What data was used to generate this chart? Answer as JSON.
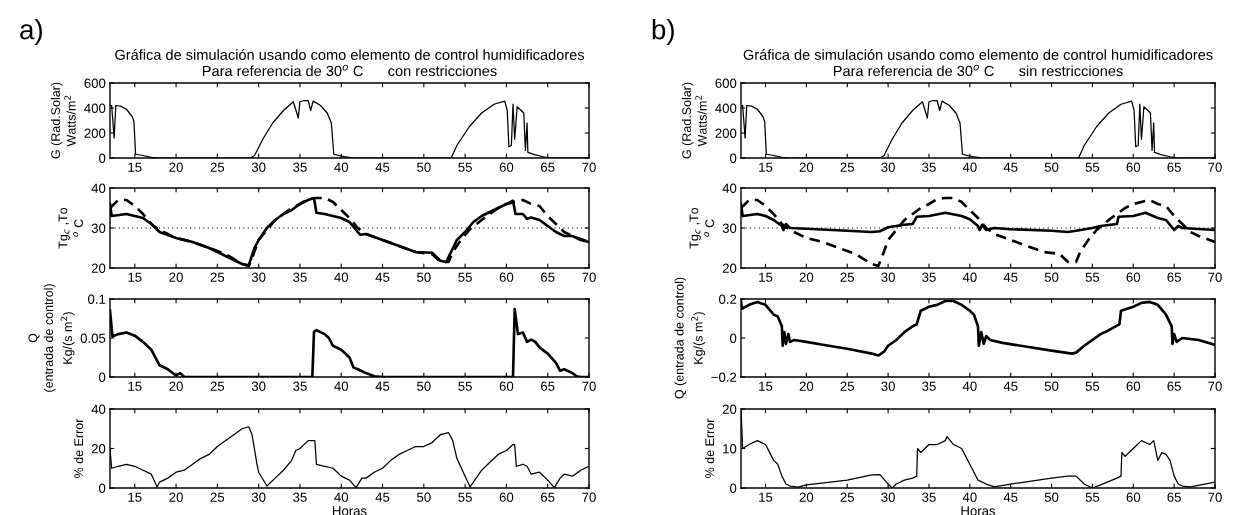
{
  "chart_data": [
    {
      "type": "line",
      "title": "Gráfica de simulación usando como elemento de control humidificadores\nPara referencia de 30$^{o}$ C      con restricciones",
      "ylabel": "G (Rad.Solar)\nWatts/m$^{2}$",
      "annotations": [
        "a)"
      ],
      "xlim": [
        12,
        70
      ],
      "xticks": [
        15,
        20,
        25,
        30,
        35,
        40,
        45,
        50,
        55,
        60,
        65,
        70
      ],
      "ylim": [
        0,
        600
      ],
      "yticks": [
        0,
        200,
        400,
        600
      ],
      "grid": false,
      "legend": false,
      "series": [
        {
          "color": "#000000",
          "x": [
            12,
            12.2,
            12.5,
            12.7,
            13.3,
            14,
            14.7,
            14.9,
            15.1,
            16,
            17,
            18,
            29,
            29.5,
            30.5,
            31.7,
            33,
            34.2,
            34.8,
            35,
            35.5,
            36,
            36.3,
            36.6,
            37.5,
            38.3,
            38.8,
            39.1,
            40,
            41.5,
            53.3,
            54,
            55.5,
            57,
            58.5,
            59.8,
            60.1,
            60.3,
            60.6,
            60.8,
            61,
            61.3,
            61.8,
            62.1,
            62.3,
            62.5,
            62.6,
            63.5,
            64.5,
            65.5,
            70
          ],
          "values": [
            420,
            420,
            160,
            420,
            415,
            390,
            330,
            290,
            30,
            20,
            5,
            0,
            0,
            20,
            150,
            280,
            380,
            450,
            320,
            450,
            460,
            460,
            380,
            455,
            420,
            360,
            280,
            30,
            15,
            0,
            0,
            100,
            250,
            360,
            430,
            455,
            380,
            90,
            100,
            430,
            150,
            410,
            380,
            360,
            60,
            280,
            45,
            25,
            10,
            0,
            0
          ]
        }
      ]
    },
    {
      "type": "line",
      "ylabel": "Tg$_{c}$ ,To\n$^{o}$ C",
      "xlim": [
        12,
        70
      ],
      "xticks": [
        15,
        20,
        25,
        30,
        35,
        40,
        45,
        50,
        55,
        60,
        65,
        70
      ],
      "ylim": [
        20,
        40
      ],
      "yticks": [
        20,
        30,
        40
      ],
      "grid": false,
      "legend": false,
      "ref_lines": [
        {
          "axis": "y",
          "value": 30,
          "line_style": "dotted",
          "color": "#000000"
        }
      ],
      "series": [
        {
          "color": "#000000",
          "line_style": "solid",
          "x": [
            12,
            12.2,
            14,
            15,
            16,
            17,
            18,
            20,
            22,
            24,
            26,
            28,
            28.8,
            29.5,
            30,
            31,
            32,
            33,
            34,
            35,
            36,
            36.7,
            37,
            38,
            39,
            40,
            41,
            42,
            42.3,
            43,
            45,
            47,
            49,
            51,
            52,
            52.7,
            53.3,
            54,
            55,
            56,
            57,
            58,
            59,
            60,
            60.8,
            61.1,
            62,
            62.5,
            63,
            64,
            65,
            66,
            67,
            68,
            69,
            70
          ],
          "values": [
            36,
            33,
            33.5,
            33,
            32.5,
            31,
            29,
            27.5,
            26.5,
            25,
            23,
            21,
            20.7,
            25,
            27,
            30,
            32,
            33.5,
            34.5,
            36,
            37,
            37.5,
            33.8,
            33.5,
            33,
            32.5,
            31.5,
            29,
            28.3,
            28.5,
            27,
            25.5,
            24,
            23.8,
            21.8,
            21.5,
            24,
            27,
            29,
            31.5,
            33,
            34,
            35,
            36,
            36.8,
            33.5,
            33.5,
            32.3,
            32.6,
            32,
            30.5,
            29,
            28,
            28,
            27,
            26.5
          ]
        },
        {
          "color": "#000000",
          "line_style": "dashed",
          "x": [
            12,
            13,
            14,
            15,
            16,
            17,
            18,
            19,
            20,
            22,
            24,
            26,
            28,
            28.8,
            29.3,
            30,
            31,
            32,
            33,
            34,
            35,
            36,
            37,
            38,
            39,
            40,
            41,
            42,
            43,
            45,
            47,
            49,
            51,
            52,
            53,
            53.5,
            54.5,
            55.5,
            57,
            58,
            59,
            60,
            61,
            62,
            63,
            64,
            65,
            66,
            67,
            68,
            70
          ],
          "values": [
            35,
            37,
            37,
            35.5,
            33.5,
            31,
            29.5,
            28.5,
            27.5,
            26.5,
            25,
            23.5,
            21,
            20.5,
            23,
            27,
            29.5,
            32,
            33.5,
            35,
            36,
            37.2,
            37.5,
            37.5,
            36.5,
            34.5,
            32.5,
            30,
            28.5,
            27,
            25.5,
            24,
            23.5,
            21.5,
            21.5,
            24,
            27,
            29.5,
            32,
            33.5,
            35,
            36,
            36.5,
            37,
            36,
            35.5,
            33,
            31,
            29,
            28,
            26.5
          ]
        }
      ]
    },
    {
      "type": "line",
      "ylabel": "Q\n(entrada de control)\nKg/(s m$^{2}$)",
      "xlim": [
        12,
        70
      ],
      "xticks": [
        15,
        20,
        25,
        30,
        35,
        40,
        45,
        50,
        55,
        60,
        65,
        70
      ],
      "ylim": [
        0,
        0.1
      ],
      "yticks": [
        0,
        0.05,
        0.1
      ],
      "grid": false,
      "legend": false,
      "series": [
        {
          "color": "#000000",
          "x": [
            12,
            12.3,
            13,
            14,
            15,
            16,
            17,
            18,
            19,
            20,
            20.5,
            21,
            36.5,
            36.7,
            37,
            38,
            38.5,
            39,
            40,
            41,
            41.5,
            42,
            43,
            44,
            45,
            60.8,
            61,
            61.4,
            62,
            62.5,
            63,
            63.5,
            64,
            65,
            66,
            66.5,
            67,
            68,
            68.5,
            69,
            70
          ],
          "values": [
            0.085,
            0.052,
            0.055,
            0.057,
            0.053,
            0.045,
            0.035,
            0.015,
            0.01,
            0.002,
            0.005,
            0,
            0,
            0.058,
            0.06,
            0.055,
            0.05,
            0.04,
            0.035,
            0.025,
            0.012,
            0.01,
            0.005,
            0.001,
            0,
            0,
            0.087,
            0.055,
            0.057,
            0.045,
            0.048,
            0.045,
            0.038,
            0.03,
            0.018,
            0.008,
            0.01,
            0.005,
            0.001,
            0,
            0
          ]
        }
      ]
    },
    {
      "type": "line",
      "ylabel": "% de Error",
      "xlabel": "Horas",
      "xlim": [
        12,
        70
      ],
      "xticks": [
        15,
        20,
        25,
        30,
        35,
        40,
        45,
        50,
        55,
        60,
        65,
        70
      ],
      "ylim": [
        0,
        40
      ],
      "yticks": [
        0,
        20,
        40
      ],
      "grid": false,
      "legend": false,
      "series": [
        {
          "color": "#000000",
          "x": [
            12,
            12.2,
            13,
            14,
            15,
            16,
            17,
            17.7,
            18,
            19,
            20,
            21,
            22,
            23,
            24,
            25,
            26,
            27,
            28,
            28.8,
            29.2,
            29.8,
            30,
            31,
            32,
            33,
            34,
            34.5,
            35,
            36,
            36.8,
            37,
            38,
            39,
            40,
            41,
            41.8,
            42.5,
            43,
            44,
            45,
            46,
            47,
            48,
            49,
            50,
            51,
            52,
            53,
            53.5,
            54,
            55,
            55.6,
            56,
            57,
            58,
            59,
            60,
            60.8,
            61,
            61.2,
            62,
            62.5,
            63,
            64,
            65,
            65.8,
            66.5,
            67,
            68,
            69,
            70
          ],
          "values": [
            20,
            10,
            11,
            12,
            11,
            9,
            7,
            0.5,
            3,
            5,
            8,
            9,
            12,
            15,
            17,
            21,
            24,
            27,
            30,
            31,
            27,
            12,
            8,
            1,
            5,
            9,
            14,
            19,
            20,
            24,
            24,
            12,
            11,
            10,
            6,
            4,
            0.2,
            5,
            5,
            8,
            10,
            14,
            17,
            19,
            21,
            21,
            23,
            27,
            28,
            24,
            15,
            6,
            0.5,
            3,
            9,
            13,
            17,
            19,
            22,
            22,
            11,
            12,
            11,
            7,
            8,
            4,
            0.2,
            5,
            7,
            6,
            9,
            11
          ]
        }
      ]
    },
    {
      "type": "line",
      "title": "Gráfica de simulación usando como elemento de control humidificadores\nPara referencia de 30$^{o}$ C      sin restricciones",
      "ylabel": "G (Rad.Solar)\nWatts/m$^{2}$",
      "annotations": [
        "b)"
      ],
      "xlim": [
        12,
        70
      ],
      "xticks": [
        15,
        20,
        25,
        30,
        35,
        40,
        45,
        50,
        55,
        60,
        65,
        70
      ],
      "ylim": [
        0,
        600
      ],
      "yticks": [
        0,
        200,
        400,
        600
      ],
      "grid": false,
      "legend": false,
      "series": [
        {
          "color": "#000000",
          "x": [
            12,
            12.2,
            12.5,
            12.7,
            13.3,
            14,
            14.7,
            14.9,
            15.1,
            16,
            17,
            18,
            29,
            29.5,
            30.5,
            31.7,
            33,
            34.2,
            34.8,
            35,
            35.5,
            36,
            36.3,
            36.6,
            37.5,
            38.3,
            38.8,
            39.1,
            40,
            41.5,
            53.3,
            54,
            55.5,
            57,
            58.5,
            59.8,
            60.1,
            60.3,
            60.6,
            60.8,
            61,
            61.3,
            61.8,
            62.1,
            62.3,
            62.5,
            62.6,
            63.5,
            64.5,
            65.5,
            70
          ],
          "values": [
            420,
            420,
            160,
            420,
            415,
            390,
            330,
            290,
            30,
            20,
            5,
            0,
            0,
            20,
            150,
            280,
            380,
            450,
            320,
            450,
            460,
            460,
            380,
            455,
            420,
            360,
            280,
            30,
            15,
            0,
            0,
            100,
            250,
            360,
            430,
            455,
            380,
            90,
            100,
            430,
            150,
            410,
            380,
            360,
            60,
            280,
            45,
            25,
            10,
            0,
            0
          ]
        }
      ]
    },
    {
      "type": "line",
      "ylabel": "Tg$_{c}$ ,To\n$^{o}$ C",
      "xlim": [
        12,
        70
      ],
      "xticks": [
        15,
        20,
        25,
        30,
        35,
        40,
        45,
        50,
        55,
        60,
        65,
        70
      ],
      "ylim": [
        20,
        40
      ],
      "yticks": [
        20,
        30,
        40
      ],
      "grid": false,
      "legend": false,
      "ref_lines": [
        {
          "axis": "y",
          "value": 30,
          "line_style": "dotted",
          "color": "#000000"
        }
      ],
      "series": [
        {
          "color": "#000000",
          "line_style": "solid",
          "x": [
            12,
            12.2,
            14,
            15,
            16,
            17,
            17.2,
            17.5,
            18,
            20,
            25,
            28,
            29,
            30,
            32,
            33,
            33.5,
            35,
            37,
            39,
            40,
            41,
            41.2,
            41.5,
            42,
            43,
            45,
            50,
            52,
            53,
            55,
            56,
            58,
            58.2,
            60,
            61.5,
            63,
            64,
            64.8,
            65,
            65.5,
            66,
            70
          ],
          "values": [
            36,
            33,
            33.5,
            33,
            32,
            30.5,
            29.5,
            31,
            30,
            29.8,
            29.3,
            29,
            29.2,
            30.2,
            30.8,
            31,
            32.8,
            33,
            33.8,
            33,
            32.2,
            30.5,
            29.5,
            30.8,
            29.5,
            30,
            29.7,
            29.3,
            29,
            29.3,
            30,
            30.5,
            31,
            32.8,
            33,
            33.8,
            32.5,
            32,
            30,
            29.5,
            30.5,
            30,
            29.5
          ]
        },
        {
          "color": "#000000",
          "line_style": "dashed",
          "x": [
            12,
            13,
            14,
            15,
            16,
            17,
            18,
            19,
            20,
            22,
            24,
            26,
            28,
            28.8,
            29.3,
            30,
            31,
            32,
            33,
            34,
            35,
            36,
            37,
            38,
            39,
            40,
            41,
            42,
            43,
            45,
            47,
            49,
            51,
            52,
            53,
            53.5,
            54.5,
            55.5,
            57,
            58,
            59,
            60,
            61,
            62,
            63,
            64,
            65,
            66,
            67,
            68,
            70
          ],
          "values": [
            35,
            37,
            37,
            35.5,
            33.5,
            31,
            29.5,
            28.5,
            27.5,
            26.5,
            25,
            23.5,
            21,
            20.5,
            23,
            27,
            29.5,
            32,
            33.5,
            35,
            36,
            37.2,
            37.5,
            37.5,
            36.5,
            34.5,
            32.5,
            30,
            28.5,
            27,
            25.5,
            24,
            23.5,
            21.5,
            21.5,
            24,
            27,
            29.5,
            32,
            33.5,
            35,
            36,
            36.5,
            37,
            36,
            35.5,
            33,
            31,
            29,
            28,
            26.5
          ]
        }
      ]
    },
    {
      "type": "line",
      "ylabel": "Q (entrada de control)\nKg/(s m$^{2}$)",
      "xlim": [
        12,
        70
      ],
      "xticks": [
        15,
        20,
        25,
        30,
        35,
        40,
        45,
        50,
        55,
        60,
        65,
        70
      ],
      "ylim": [
        -0.2,
        0.2
      ],
      "yticks": [
        {
          "value": -0.2,
          "label": "−0.2"
        },
        0,
        0.2
      ],
      "grid": false,
      "legend": false,
      "series": [
        {
          "color": "#000000",
          "x": [
            12,
            12.1,
            13,
            14,
            15,
            16,
            16.5,
            17,
            17.1,
            17.3,
            17.5,
            17.8,
            18,
            18.5,
            20,
            22,
            25,
            28,
            28.8,
            29.5,
            30,
            31,
            32,
            33,
            33.5,
            34,
            35,
            36,
            37,
            38,
            39,
            40,
            40.5,
            41,
            41.1,
            41.4,
            41.7,
            42,
            42.5,
            44,
            47,
            50,
            52.5,
            53,
            54,
            55,
            56,
            57,
            58.3,
            58.5,
            60,
            61,
            62,
            63,
            64,
            64.7,
            64.8,
            65,
            65.3,
            66,
            67,
            68,
            70
          ],
          "values": [
            0.19,
            0.15,
            0.17,
            0.185,
            0.17,
            0.12,
            0.11,
            0.06,
            -0.04,
            0.03,
            -0.03,
            0.02,
            -0.02,
            -0.01,
            -0.02,
            -0.035,
            -0.055,
            -0.08,
            -0.09,
            -0.07,
            -0.04,
            -0.01,
            0.03,
            0.06,
            0.07,
            0.14,
            0.16,
            0.17,
            0.19,
            0.19,
            0.17,
            0.14,
            0.12,
            0.06,
            -0.04,
            0.03,
            -0.03,
            0.01,
            -0.01,
            -0.025,
            -0.045,
            -0.065,
            -0.08,
            -0.075,
            -0.04,
            -0.01,
            0.02,
            0.04,
            0.07,
            0.14,
            0.16,
            0.18,
            0.185,
            0.17,
            0.12,
            0.06,
            -0.03,
            0.02,
            -0.02,
            0,
            -0.005,
            -0.01,
            -0.035
          ]
        }
      ]
    },
    {
      "type": "line",
      "ylabel": "% de Error",
      "xlabel": "Horas",
      "xlim": [
        12,
        70
      ],
      "xticks": [
        15,
        20,
        25,
        30,
        35,
        40,
        45,
        50,
        55,
        60,
        65,
        70
      ],
      "ylim": [
        0,
        20
      ],
      "yticks": [
        0,
        10,
        20
      ],
      "grid": false,
      "legend": false,
      "series": [
        {
          "color": "#000000",
          "x": [
            12,
            12.2,
            13,
            14,
            15,
            16,
            16.5,
            17,
            17.5,
            18,
            19,
            20,
            25,
            28,
            29,
            30,
            30.5,
            31,
            32,
            33,
            33.5,
            33.6,
            34,
            35,
            36,
            37,
            37.2,
            38,
            39,
            39.5,
            40,
            40.5,
            41,
            42,
            43,
            45,
            50,
            52,
            53,
            54,
            55,
            56,
            58,
            58.5,
            58.6,
            59,
            60,
            61,
            62,
            62.5,
            63,
            63.5,
            64,
            64.5,
            65,
            65.5,
            66,
            67,
            70
          ],
          "values": [
            20,
            10,
            11,
            12,
            11,
            7,
            6,
            3,
            1,
            0.5,
            0.2,
            0.8,
            2,
            3.3,
            3.4,
            1,
            0,
            1,
            2,
            2.5,
            3,
            10,
            9,
            11,
            11,
            12,
            13,
            11,
            10,
            8,
            6,
            4,
            2,
            1,
            0.3,
            1,
            2.5,
            3,
            3,
            1,
            0,
            0.8,
            2.5,
            3,
            9,
            8,
            10,
            12,
            11,
            12,
            7,
            9,
            8.5,
            7,
            3,
            1,
            0.5,
            0.3,
            1.5
          ]
        }
      ]
    }
  ]
}
